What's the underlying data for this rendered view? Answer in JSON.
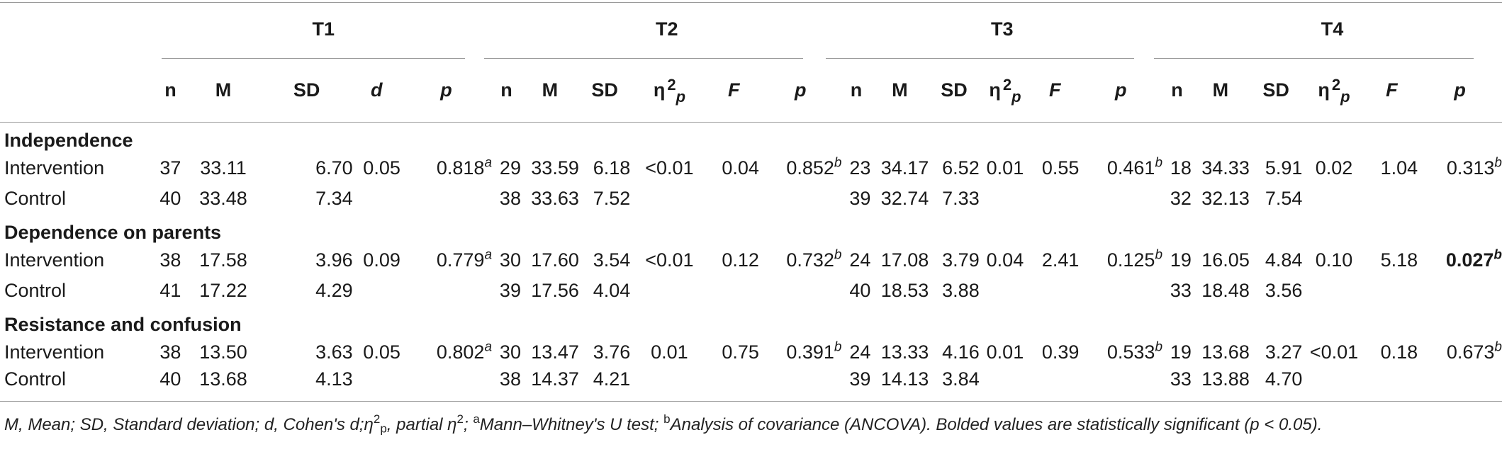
{
  "time_points": [
    "T1",
    "T2",
    "T3",
    "T4"
  ],
  "columns": {
    "t1": [
      "n",
      "M",
      "SD",
      "d",
      "p"
    ],
    "n": "n",
    "M": "M",
    "SD": "SD",
    "d": "d",
    "p": "p",
    "eta": "η",
    "eta_sup": "2",
    "eta_sub": "p",
    "F": "F"
  },
  "groups": [
    {
      "label": "Independence",
      "rows": [
        {
          "label": "Intervention",
          "t1": {
            "n": "37",
            "M": "33.11",
            "SD": "6.70",
            "d": "0.05",
            "p": "0.818",
            "p_sup": "a"
          },
          "t2": {
            "n": "29",
            "M": "33.59",
            "SD": "6.18",
            "eta": "<0.01",
            "F": "0.04",
            "p": "0.852",
            "p_sup": "b"
          },
          "t3": {
            "n": "23",
            "M": "34.17",
            "SD": "6.52",
            "eta": "0.01",
            "F": "0.55",
            "p": "0.461",
            "p_sup": "b"
          },
          "t4": {
            "n": "18",
            "M": "34.33",
            "SD": "5.91",
            "eta": "0.02",
            "F": "1.04",
            "p": "0.313",
            "p_sup": "b"
          }
        },
        {
          "label": "Control",
          "t1": {
            "n": "40",
            "M": "33.48",
            "SD": "7.34"
          },
          "t2": {
            "n": "38",
            "M": "33.63",
            "SD": "7.52"
          },
          "t3": {
            "n": "39",
            "M": "32.74",
            "SD": "7.33"
          },
          "t4": {
            "n": "32",
            "M": "32.13",
            "SD": "7.54"
          }
        }
      ]
    },
    {
      "label": "Dependence on parents",
      "rows": [
        {
          "label": "Intervention",
          "t1": {
            "n": "38",
            "M": "17.58",
            "SD": "3.96",
            "d": "0.09",
            "p": "0.779",
            "p_sup": "a"
          },
          "t2": {
            "n": "30",
            "M": "17.60",
            "SD": "3.54",
            "eta": "<0.01",
            "F": "0.12",
            "p": "0.732",
            "p_sup": "b"
          },
          "t3": {
            "n": "24",
            "M": "17.08",
            "SD": "3.79",
            "eta": "0.04",
            "F": "2.41",
            "p": "0.125",
            "p_sup": "b"
          },
          "t4": {
            "n": "19",
            "M": "16.05",
            "SD": "4.84",
            "eta": "0.10",
            "F": "5.18",
            "p": "0.027",
            "p_sup": "b"
          }
        },
        {
          "label": "Control",
          "t1": {
            "n": "41",
            "M": "17.22",
            "SD": "4.29"
          },
          "t2": {
            "n": "39",
            "M": "17.56",
            "SD": "4.04"
          },
          "t3": {
            "n": "40",
            "M": "18.53",
            "SD": "3.88"
          },
          "t4": {
            "n": "33",
            "M": "18.48",
            "SD": "3.56"
          }
        }
      ]
    },
    {
      "label": "Resistance and confusion",
      "rows": [
        {
          "label": "Intervention",
          "t1": {
            "n": "38",
            "M": "13.50",
            "SD": "3.63",
            "d": "0.05",
            "p": "0.802",
            "p_sup": "a"
          },
          "t2": {
            "n": "30",
            "M": "13.47",
            "SD": "3.76",
            "eta": "0.01",
            "F": "0.75",
            "p": "0.391",
            "p_sup": "b"
          },
          "t3": {
            "n": "24",
            "M": "13.33",
            "SD": "4.16",
            "eta": "0.01",
            "F": "0.39",
            "p": "0.533",
            "p_sup": "b"
          },
          "t4": {
            "n": "19",
            "M": "13.68",
            "SD": "3.27",
            "eta": "<0.01",
            "F": "0.18",
            "p": "0.673",
            "p_sup": "b"
          }
        },
        {
          "label": "Control",
          "t1": {
            "n": "40",
            "M": "13.68",
            "SD": "4.13"
          },
          "t2": {
            "n": "38",
            "M": "14.37",
            "SD": "4.21"
          },
          "t3": {
            "n": "39",
            "M": "14.13",
            "SD": "3.84"
          },
          "t4": {
            "n": "33",
            "M": "13.88",
            "SD": "4.70"
          }
        }
      ]
    }
  ],
  "footnote": {
    "part1": "M, Mean; SD, Standard deviation; d, Cohen's d;η",
    "part1_sup": "2",
    "part1_sub": "p",
    "part2": ", partial η",
    "part2_sup": "2",
    "part3": "; ",
    "mark_a": "a",
    "part4": "Mann–Whitney's U test; ",
    "mark_b": "b",
    "part5": "Analysis of covariance (ANCOVA). Bolded values are statistically significant (p < 0.05)."
  }
}
